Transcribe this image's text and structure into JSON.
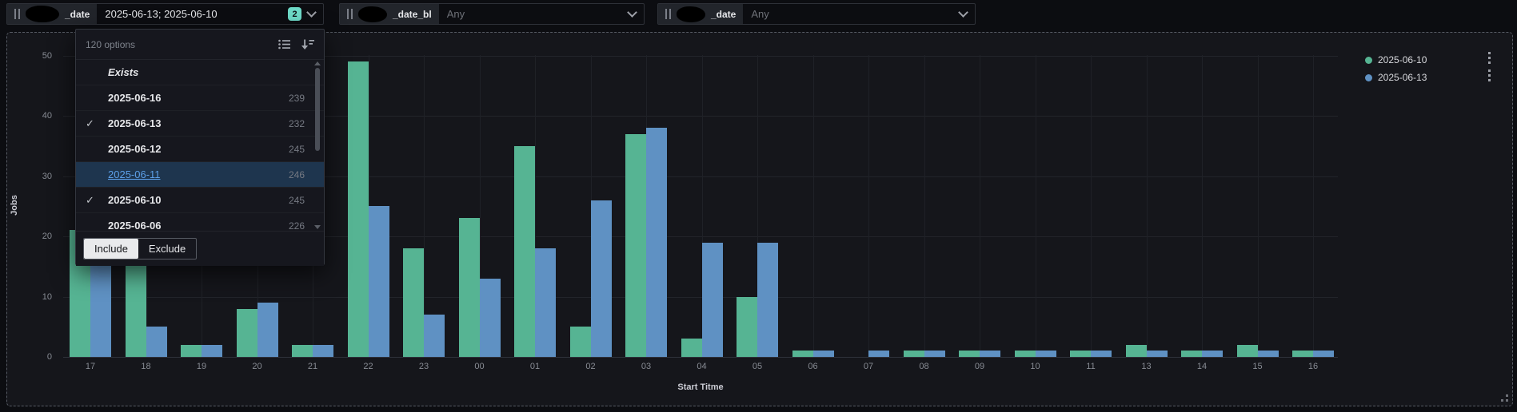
{
  "topbar": {
    "filters": [
      {
        "label_suffix": "_date",
        "value": "2025-06-13; 2025-06-10",
        "badge_count": "2"
      },
      {
        "label_suffix": "_date_bl",
        "placeholder": "Any"
      },
      {
        "label_suffix": "_date",
        "placeholder": "Any"
      }
    ]
  },
  "dropdown": {
    "header": "120 options",
    "rows": [
      {
        "label": "Exists",
        "style": "exists"
      },
      {
        "label": "2025-06-16",
        "count": "239"
      },
      {
        "label": "2025-06-13",
        "count": "232",
        "checked": true
      },
      {
        "label": "2025-06-12",
        "count": "245"
      },
      {
        "label": "2025-06-11",
        "count": "246",
        "highlighted": true
      },
      {
        "label": "2025-06-10",
        "count": "245",
        "checked": true
      },
      {
        "label": "2025-06-06",
        "count": "226",
        "partial": true
      }
    ],
    "buttons": {
      "include": "Include",
      "exclude": "Exclude"
    }
  },
  "chart_data": {
    "type": "bar",
    "title": "",
    "xlabel": "Start Titme",
    "ylabel": "Jobs",
    "ylim": [
      0,
      50
    ],
    "yticks": [
      0,
      10,
      20,
      30,
      40,
      50
    ],
    "grid": true,
    "legend_position": "top-right",
    "categories": [
      "17",
      "18",
      "19",
      "20",
      "21",
      "22",
      "23",
      "00",
      "01",
      "02",
      "03",
      "04",
      "05",
      "06",
      "07",
      "08",
      "09",
      "10",
      "11",
      "13",
      "14",
      "15",
      "16"
    ],
    "series": [
      {
        "name": "2025-06-10",
        "color": "#56b493",
        "values": [
          21,
          22,
          2,
          8,
          2,
          49,
          18,
          23,
          35,
          5,
          37,
          3,
          10,
          1,
          0,
          1,
          1,
          1,
          1,
          2,
          1,
          2,
          1
        ]
      },
      {
        "name": "2025-06-13",
        "color": "#5f91c3",
        "values": [
          21,
          5,
          2,
          9,
          2,
          25,
          7,
          13,
          18,
          26,
          38,
          19,
          19,
          1,
          1,
          1,
          1,
          1,
          1,
          1,
          1,
          1,
          1
        ]
      }
    ]
  },
  "colors": {
    "badge_teal": "#6edac8",
    "green_series": "#56b493",
    "blue_series": "#5f91c3"
  }
}
